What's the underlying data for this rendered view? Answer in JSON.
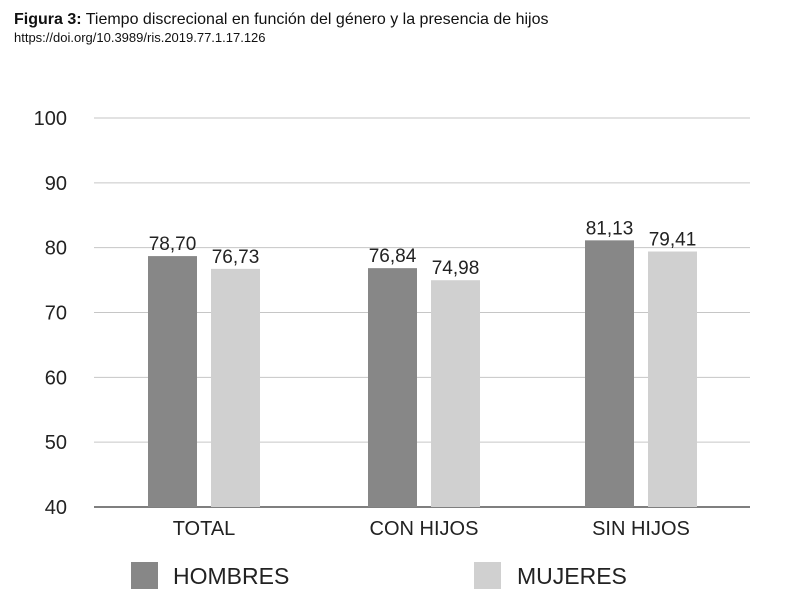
{
  "figure": {
    "label": "Figura 3:",
    "title": "Tiempo discrecional en función del género y la presencia de hijos",
    "doi": "https://doi.org/10.3989/ris.2019.77.1.17.126"
  },
  "chart_data": {
    "type": "bar",
    "title": "",
    "xlabel": "",
    "ylabel": "",
    "categories": [
      "TOTAL",
      "CON HIJOS",
      "SIN HIJOS"
    ],
    "series": [
      {
        "name": "HOMBRES",
        "values": [
          78.7,
          76.84,
          81.13
        ],
        "labels": [
          "78,70",
          "76,84",
          "81,13"
        ],
        "color": "#878787"
      },
      {
        "name": "MUJERES",
        "values": [
          76.73,
          74.98,
          79.41
        ],
        "labels": [
          "76,73",
          "74,98",
          "79,41"
        ],
        "color": "#d0d0d0"
      }
    ],
    "ylim": [
      40,
      100
    ],
    "yticks": [
      40,
      50,
      60,
      70,
      80,
      90,
      100
    ],
    "grid": true,
    "gridline_color": "#c6c6c6",
    "legend_position": "bottom"
  }
}
